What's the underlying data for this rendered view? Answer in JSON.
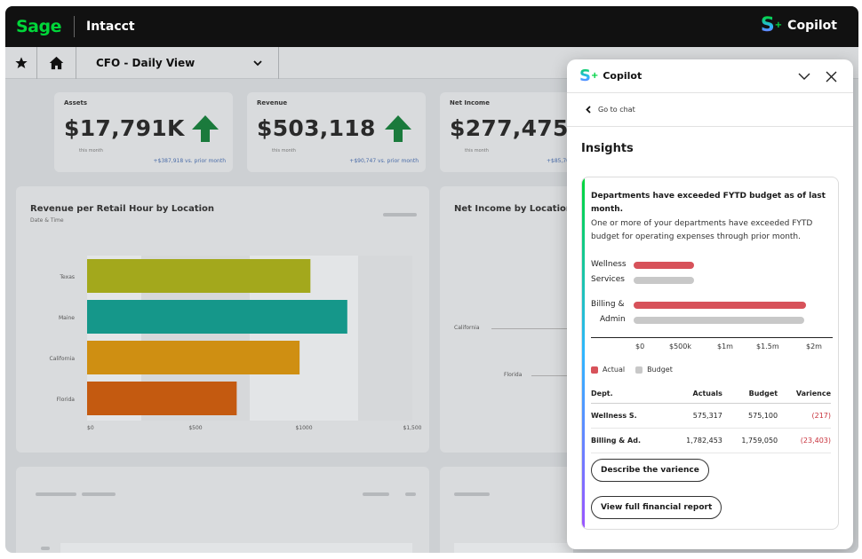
{
  "topbar": {
    "logo": "Sage",
    "product": "Intacct",
    "copilot_label": "Copilot"
  },
  "nav": {
    "view_title": "CFO - Daily View"
  },
  "kpis": [
    {
      "title": "Assets",
      "value": "$17,791K",
      "sub": "this month",
      "compare": "+$387,918 vs. prior month"
    },
    {
      "title": "Revenue",
      "value": "$503,118",
      "sub": "this month",
      "compare": "+$90,747 vs. prior month"
    },
    {
      "title": "Net Income",
      "value": "$277,475",
      "sub": "this month",
      "compare": "+$85,70"
    }
  ],
  "revenue_chart": {
    "title": "Revenue per Retail Hour by Location",
    "subtitle": "Date & Time",
    "chart_data": {
      "type": "bar",
      "orientation": "horizontal",
      "categories": [
        "Texas",
        "Maine",
        "California",
        "Florida"
      ],
      "values": [
        1030,
        1200,
        980,
        690
      ],
      "colors": [
        "#a3a81c",
        "#15978a",
        "#cf8f12",
        "#c45a10"
      ],
      "xticks": [
        "$0",
        "$500",
        "$1000",
        "$1,500"
      ],
      "xlim": [
        0,
        1500
      ]
    }
  },
  "net_income_chart": {
    "title": "Net Income by Location",
    "labels": [
      "California",
      "Florida"
    ]
  },
  "copilot": {
    "title": "Copilot",
    "go_to_chat": "Go to chat",
    "insights_title": "Insights",
    "insight": {
      "headline": "Departments have exceeded FYTD budget as of last month.",
      "body": "One or more of your departments have exceeded FYTD budget for operating expenses through prior month.",
      "chart_data": {
        "type": "bar",
        "orientation": "horizontal",
        "categories": [
          "Wellness Services",
          "Billing & Admin"
        ],
        "series": [
          {
            "name": "Actual",
            "values": [
              575317,
              1782453
            ],
            "color": "#d7525a"
          },
          {
            "name": "Budget",
            "values": [
              575100,
              1759050
            ],
            "color": "#c8c8c8"
          }
        ],
        "xticks": [
          "$0",
          "$500k",
          "$1m",
          "$1.5m",
          "$2m"
        ],
        "xlim": [
          0,
          2000000
        ]
      },
      "labels": {
        "wellness_1": "Wellness",
        "wellness_2": "Services",
        "billing_1": "Billing &",
        "billing_2": "Admin"
      },
      "legend": {
        "actual": "Actual",
        "budget": "Budget"
      },
      "table": {
        "headers": [
          "Dept.",
          "Actuals",
          "Budget",
          "Varience"
        ],
        "rows": [
          [
            "Wellness S.",
            "575,317",
            "575,100",
            "(217)"
          ],
          [
            "Billing & Ad.",
            "1,782,453",
            "1,759,050",
            "(23,403)"
          ]
        ]
      },
      "buttons": {
        "describe": "Describe the varience",
        "view_report": "View full financial report"
      }
    }
  }
}
